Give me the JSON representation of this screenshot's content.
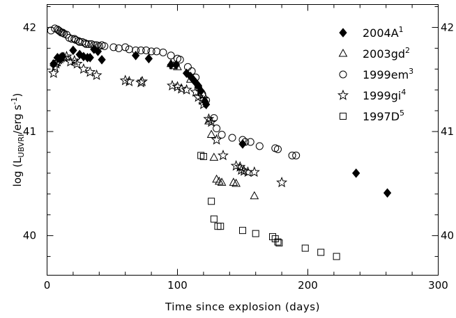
{
  "chart_data": {
    "type": "scatter",
    "title": "",
    "xlabel": "Time since explosion (days)",
    "ylabel": {
      "main": "log (L",
      "sub": "UBVRI",
      "rest": "/erg s",
      "sup": "-1",
      "close": ")"
    },
    "xlim": [
      0,
      300
    ],
    "ylim": [
      39.62,
      42.22
    ],
    "xticks": [
      {
        "value": 0,
        "label": "0"
      },
      {
        "value": 100,
        "label": "100"
      },
      {
        "value": 200,
        "label": "200"
      },
      {
        "value": 300,
        "label": "300"
      }
    ],
    "yticks": [
      {
        "value": 40,
        "label": "40"
      },
      {
        "value": 41,
        "label": "41"
      },
      {
        "value": 42,
        "label": "42"
      }
    ],
    "legend_position": "top-right",
    "series": [
      {
        "name": "2004A",
        "sup": "1",
        "marker": "diamond",
        "points": [
          [
            5,
            41.65
          ],
          [
            8,
            41.71
          ],
          [
            10,
            41.7
          ],
          [
            12,
            41.72
          ],
          [
            20,
            41.78
          ],
          [
            25,
            41.74
          ],
          [
            28,
            41.72
          ],
          [
            31,
            41.71
          ],
          [
            33,
            41.71
          ],
          [
            36,
            41.79
          ],
          [
            39,
            41.77
          ],
          [
            42,
            41.69
          ],
          [
            68,
            41.73
          ],
          [
            78,
            41.7
          ],
          [
            95,
            41.64
          ],
          [
            99,
            41.64
          ],
          [
            107,
            41.56
          ],
          [
            110,
            41.53
          ],
          [
            112,
            41.5
          ],
          [
            114,
            41.47
          ],
          [
            116,
            41.44
          ],
          [
            118,
            41.39
          ],
          [
            121,
            41.29
          ],
          [
            122,
            41.26
          ],
          [
            150,
            40.88
          ],
          [
            237,
            40.6
          ],
          [
            261,
            40.41
          ]
        ]
      },
      {
        "name": "2003gd",
        "sup": "2",
        "marker": "triangle",
        "points": [
          [
            95,
            41.65
          ],
          [
            97,
            41.63
          ],
          [
            100,
            41.62
          ],
          [
            110,
            41.5
          ],
          [
            120,
            41.35
          ],
          [
            124,
            41.1
          ],
          [
            126,
            40.97
          ],
          [
            128,
            40.75
          ],
          [
            130,
            40.54
          ],
          [
            132,
            40.52
          ],
          [
            134,
            40.51
          ],
          [
            143,
            40.51
          ],
          [
            145,
            40.5
          ],
          [
            159,
            40.38
          ]
        ]
      },
      {
        "name": "1999em",
        "sup": "3",
        "marker": "circle",
        "points": [
          [
            3,
            41.97
          ],
          [
            6,
            41.99
          ],
          [
            8,
            41.98
          ],
          [
            9,
            41.97
          ],
          [
            10,
            41.96
          ],
          [
            11,
            41.95
          ],
          [
            12,
            41.95
          ],
          [
            13,
            41.94
          ],
          [
            15,
            41.93
          ],
          [
            17,
            41.9
          ],
          [
            19,
            41.89
          ],
          [
            21,
            41.89
          ],
          [
            22,
            41.88
          ],
          [
            24,
            41.87
          ],
          [
            25,
            41.86
          ],
          [
            27,
            41.86
          ],
          [
            29,
            41.85
          ],
          [
            30,
            41.84
          ],
          [
            32,
            41.84
          ],
          [
            34,
            41.84
          ],
          [
            36,
            41.83
          ],
          [
            38,
            41.83
          ],
          [
            40,
            41.82
          ],
          [
            42,
            41.83
          ],
          [
            44,
            41.82
          ],
          [
            51,
            41.81
          ],
          [
            55,
            41.8
          ],
          [
            60,
            41.81
          ],
          [
            63,
            41.79
          ],
          [
            68,
            41.78
          ],
          [
            72,
            41.78
          ],
          [
            76,
            41.78
          ],
          [
            80,
            41.77
          ],
          [
            84,
            41.77
          ],
          [
            89,
            41.76
          ],
          [
            95,
            41.73
          ],
          [
            100,
            41.7
          ],
          [
            102,
            41.69
          ],
          [
            108,
            41.62
          ],
          [
            111,
            41.58
          ],
          [
            114,
            41.52
          ],
          [
            116,
            41.42
          ],
          [
            119,
            41.36
          ],
          [
            122,
            41.3
          ],
          [
            128,
            41.13
          ],
          [
            130,
            41.03
          ],
          [
            134,
            40.97
          ],
          [
            142,
            40.94
          ],
          [
            150,
            40.92
          ],
          [
            152,
            40.9
          ],
          [
            156,
            40.9
          ],
          [
            163,
            40.86
          ],
          [
            175,
            40.84
          ],
          [
            177,
            40.83
          ],
          [
            188,
            40.77
          ],
          [
            191,
            40.77
          ]
        ]
      },
      {
        "name": "1999gi",
        "sup": "4",
        "marker": "star",
        "points": [
          [
            5,
            41.56
          ],
          [
            6,
            41.62
          ],
          [
            7,
            41.65
          ],
          [
            8,
            41.67
          ],
          [
            9,
            41.69
          ],
          [
            10,
            41.7
          ],
          [
            11,
            41.71
          ],
          [
            13,
            41.71
          ],
          [
            15,
            41.72
          ],
          [
            18,
            41.67
          ],
          [
            21,
            41.68
          ],
          [
            23,
            41.65
          ],
          [
            28,
            41.6
          ],
          [
            33,
            41.57
          ],
          [
            38,
            41.54
          ],
          [
            60,
            41.49
          ],
          [
            63,
            41.48
          ],
          [
            72,
            41.47
          ],
          [
            73,
            41.48
          ],
          [
            96,
            41.44
          ],
          [
            100,
            41.43
          ],
          [
            103,
            41.41
          ],
          [
            107,
            41.4
          ],
          [
            114,
            41.38
          ],
          [
            116,
            41.33
          ],
          [
            119,
            41.3
          ],
          [
            120,
            41.26
          ],
          [
            124,
            41.12
          ],
          [
            126,
            41.09
          ],
          [
            130,
            40.92
          ],
          [
            135,
            40.77
          ],
          [
            145,
            40.67
          ],
          [
            148,
            40.66
          ],
          [
            149,
            40.63
          ],
          [
            151,
            40.62
          ],
          [
            154,
            40.61
          ],
          [
            159,
            40.61
          ],
          [
            180,
            40.51
          ]
        ]
      },
      {
        "name": "1997D",
        "sup": "5",
        "marker": "square",
        "points": [
          [
            118,
            40.77
          ],
          [
            120,
            40.76
          ],
          [
            126,
            40.33
          ],
          [
            128,
            40.16
          ],
          [
            131,
            40.09
          ],
          [
            133,
            40.09
          ],
          [
            150,
            40.05
          ],
          [
            160,
            40.02
          ],
          [
            173,
            39.99
          ],
          [
            175,
            39.97
          ],
          [
            177,
            39.94
          ],
          [
            178,
            39.93
          ],
          [
            198,
            39.88
          ],
          [
            210,
            39.84
          ],
          [
            222,
            39.8
          ]
        ]
      }
    ]
  }
}
